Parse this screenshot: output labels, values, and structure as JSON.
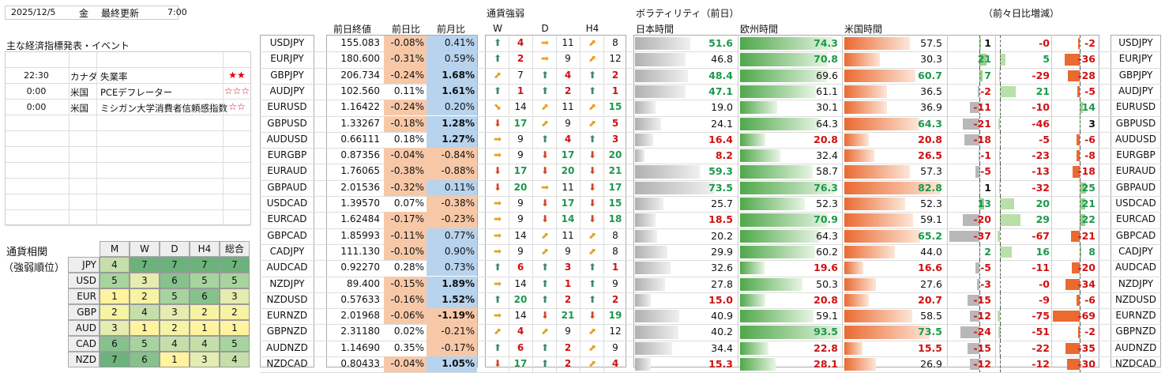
{
  "header": {
    "date": "2025/12/5",
    "weekday": "金",
    "updated_label": "最終更新",
    "updated_time": "7:00"
  },
  "events": {
    "title": "主な経済指標発表・イベント",
    "rows": [
      {
        "time": "",
        "country": "",
        "name": "",
        "stars": ""
      },
      {
        "time": "22:30",
        "country": "カナダ",
        "name": "失業率",
        "stars": "★★"
      },
      {
        "time": "0:00",
        "country": "米国",
        "name": "PCEデフレーター",
        "stars": "☆☆☆"
      },
      {
        "time": "0:00",
        "country": "米国",
        "name": "ミシガン大学消費者信頼感指数",
        "stars": "☆☆"
      },
      {
        "time": "",
        "country": "",
        "name": "",
        "stars": ""
      },
      {
        "time": "",
        "country": "",
        "name": "",
        "stars": ""
      },
      {
        "time": "",
        "country": "",
        "name": "",
        "stars": ""
      },
      {
        "time": "",
        "country": "",
        "name": "",
        "stars": ""
      },
      {
        "time": "",
        "country": "",
        "name": "",
        "stars": ""
      },
      {
        "time": "",
        "country": "",
        "name": "",
        "stars": ""
      },
      {
        "time": "",
        "country": "",
        "name": "",
        "stars": ""
      }
    ]
  },
  "corr": {
    "title1": "通貨相関",
    "title2": "（強弱順位）",
    "headers": [
      "M",
      "W",
      "D",
      "H4",
      "総合"
    ],
    "rows": [
      {
        "ccy": "JPY",
        "v": [
          "4",
          "7",
          "7",
          "7",
          "7"
        ]
      },
      {
        "ccy": "USD",
        "v": [
          "5",
          "3",
          "6",
          "5",
          "5"
        ]
      },
      {
        "ccy": "EUR",
        "v": [
          "1",
          "2",
          "5",
          "6",
          "3"
        ]
      },
      {
        "ccy": "GBP",
        "v": [
          "2",
          "4",
          "3",
          "2",
          "2"
        ]
      },
      {
        "ccy": "AUD",
        "v": [
          "3",
          "1",
          "2",
          "1",
          "1"
        ]
      },
      {
        "ccy": "CAD",
        "v": [
          "6",
          "5",
          "4",
          "4",
          "5"
        ]
      },
      {
        "ccy": "NZD",
        "v": [
          "7",
          "6",
          "1",
          "3",
          "4"
        ]
      }
    ]
  },
  "pairs_head": {
    "close": "前日終値",
    "dchg": "前日比",
    "mchg": "前月比"
  },
  "strength_head": {
    "title": "通貨強弱",
    "w": "W",
    "d": "D",
    "h4": "H4"
  },
  "vol_head": {
    "title": "ボラティリティ（前日）",
    "jp": "日本時間",
    "eu": "欧州時間",
    "us": "米国時間"
  },
  "diff_head": {
    "title": "（前々日比増減）"
  },
  "colors": {
    "up": "#1a9a4a",
    "down": "#d01010",
    "neg_bg": "#f7c8a8",
    "pos_bg": "#b8d3ee"
  },
  "rows": [
    {
      "pair": "USDJPY",
      "close": "155.083",
      "dchg": "-0.08%",
      "mchg": "0.41%",
      "mbold": false,
      "w": "up",
      "wn": "4",
      "wc": "r",
      "d": "right",
      "dn": "11",
      "dc": "n",
      "h": "ur",
      "hn": "8",
      "hc": "n",
      "jp": "51.6",
      "jpc": "g",
      "jpl": 0.55,
      "eu": "74.3",
      "euc": "g",
      "eul": 0.92,
      "us": "57.5",
      "usc": "n",
      "usl": 0.65,
      "d1": "1",
      "d1c": "n",
      "d1v": 0.1,
      "d2": "-0",
      "d2c": "r",
      "d2v": 0.0,
      "d3": "-2",
      "d3c": "r",
      "d3v": -0.05
    },
    {
      "pair": "EURJPY",
      "close": "180.600",
      "dchg": "-0.31%",
      "mchg": "0.59%",
      "mbold": false,
      "w": "up",
      "wn": "2",
      "wc": "r",
      "d": "right",
      "dn": "9",
      "dc": "n",
      "h": "ur",
      "hn": "12",
      "hc": "n",
      "jp": "46.8",
      "jpc": "n",
      "jpl": 0.5,
      "eu": "70.8",
      "euc": "g",
      "eul": 0.87,
      "us": "30.3",
      "usc": "n",
      "usl": 0.35,
      "d1": "21",
      "d1c": "g",
      "d1v": 0.5,
      "d2": "5",
      "d2c": "g",
      "d2v": 0.1,
      "d3": "-36",
      "d3c": "r",
      "d3v": -0.55
    },
    {
      "pair": "GBPJPY",
      "close": "206.734",
      "dchg": "-0.24%",
      "mchg": "1.68%",
      "mbold": true,
      "w": "ur",
      "wn": "7",
      "wc": "n",
      "d": "up",
      "dn": "4",
      "dc": "r",
      "h": "up",
      "hn": "2",
      "hc": "r",
      "jp": "48.4",
      "jpc": "g",
      "jpl": 0.52,
      "eu": "69.6",
      "euc": "n",
      "eul": 0.86,
      "us": "60.7",
      "usc": "g",
      "usl": 0.7,
      "d1": "7",
      "d1c": "g",
      "d1v": 0.2,
      "d2": "-29",
      "d2c": "r",
      "d2v": 0.4,
      "d3": "-28",
      "d3c": "r",
      "d3v": -0.42
    },
    {
      "pair": "AUDJPY",
      "close": "102.560",
      "dchg": "0.11%",
      "mchg": "1.61%",
      "mbold": true,
      "w": "up",
      "wn": "1",
      "wc": "r",
      "d": "up",
      "dn": "2",
      "dc": "r",
      "h": "up",
      "hn": "1",
      "hc": "r",
      "jp": "47.1",
      "jpc": "g",
      "jpl": 0.5,
      "eu": "61.1",
      "euc": "n",
      "eul": 0.75,
      "us": "36.5",
      "usc": "n",
      "usl": 0.42,
      "d1": "-2",
      "d1c": "r",
      "d1v": -0.05,
      "d2": "21",
      "d2c": "g",
      "d2v": 0.3,
      "d3": "-5",
      "d3c": "r",
      "d3v": -0.08
    },
    {
      "pair": "EURUSD",
      "close": "1.16422",
      "dchg": "-0.24%",
      "mchg": "0.20%",
      "mbold": false,
      "w": "dr",
      "wn": "14",
      "wc": "n",
      "d": "ur",
      "dn": "11",
      "dc": "n",
      "h": "ur",
      "hn": "15",
      "hc": "g",
      "jp": "19.0",
      "jpc": "n",
      "jpl": 0.2,
      "eu": "30.1",
      "euc": "n",
      "eul": 0.37,
      "us": "36.9",
      "usc": "n",
      "usl": 0.42,
      "d1": "-11",
      "d1c": "r",
      "d1v": -0.3,
      "d2": "-10",
      "d2c": "r",
      "d2v": 0.14,
      "d3": "14",
      "d3c": "g",
      "d3v": 0.2
    },
    {
      "pair": "GBPUSD",
      "close": "1.33267",
      "dchg": "-0.18%",
      "mchg": "1.28%",
      "mbold": true,
      "w": "down",
      "wn": "17",
      "wc": "g",
      "d": "ur",
      "dn": "9",
      "dc": "n",
      "h": "ur",
      "hn": "5",
      "hc": "r",
      "jp": "24.1",
      "jpc": "n",
      "jpl": 0.26,
      "eu": "64.3",
      "euc": "n",
      "eul": 0.79,
      "us": "64.3",
      "usc": "g",
      "usl": 0.74,
      "d1": "-21",
      "d1c": "r",
      "d1v": -0.55,
      "d2": "-46",
      "d2c": "r",
      "d2v": 0.62,
      "d3": "3",
      "d3c": "n",
      "d3v": 0.05
    },
    {
      "pair": "AUDUSD",
      "close": "0.66111",
      "dchg": "0.18%",
      "mchg": "1.27%",
      "mbold": true,
      "w": "right",
      "wn": "9",
      "wc": "n",
      "d": "up",
      "dn": "4",
      "dc": "r",
      "h": "up",
      "hn": "3",
      "hc": "r",
      "jp": "16.4",
      "jpc": "r",
      "jpl": 0.18,
      "eu": "20.8",
      "euc": "r",
      "eul": 0.25,
      "us": "20.8",
      "usc": "r",
      "usl": 0.24,
      "d1": "-18",
      "d1c": "r",
      "d1v": -0.48,
      "d2": "-5",
      "d2c": "r",
      "d2v": 0.07,
      "d3": "-6",
      "d3c": "r",
      "d3v": -0.1
    },
    {
      "pair": "EURGBP",
      "close": "0.87356",
      "dchg": "-0.04%",
      "mchg": "-0.84%",
      "mbold": false,
      "w": "right",
      "wn": "9",
      "wc": "n",
      "d": "down",
      "dn": "17",
      "dc": "g",
      "h": "down",
      "hn": "20",
      "hc": "g",
      "jp": "8.2",
      "jpc": "r",
      "jpl": 0.09,
      "eu": "32.4",
      "euc": "n",
      "eul": 0.4,
      "us": "26.5",
      "usc": "r",
      "usl": 0.3,
      "d1": "-1",
      "d1c": "r",
      "d1v": -0.03,
      "d2": "-23",
      "d2c": "r",
      "d2v": 0.3,
      "d3": "-8",
      "d3c": "r",
      "d3v": -0.12
    },
    {
      "pair": "EURAUD",
      "close": "1.76065",
      "dchg": "-0.38%",
      "mchg": "-0.88%",
      "mbold": false,
      "w": "down",
      "wn": "17",
      "wc": "g",
      "d": "down",
      "dn": "20",
      "dc": "g",
      "h": "down",
      "hn": "21",
      "hc": "g",
      "jp": "59.3",
      "jpc": "g",
      "jpl": 0.64,
      "eu": "58.7",
      "euc": "n",
      "eul": 0.72,
      "us": "57.3",
      "usc": "n",
      "usl": 0.65,
      "d1": "-5",
      "d1c": "r",
      "d1v": -0.14,
      "d2": "-13",
      "d2c": "r",
      "d2v": 0.17,
      "d3": "-18",
      "d3c": "r",
      "d3v": -0.27
    },
    {
      "pair": "GBPAUD",
      "close": "2.01536",
      "dchg": "-0.32%",
      "mchg": "0.11%",
      "mbold": false,
      "w": "down",
      "wn": "20",
      "wc": "g",
      "d": "right",
      "dn": "11",
      "dc": "n",
      "h": "down",
      "hn": "17",
      "hc": "g",
      "jp": "73.5",
      "jpc": "g",
      "jpl": 0.79,
      "eu": "76.3",
      "euc": "g",
      "eul": 0.94,
      "us": "82.8",
      "usc": "g",
      "usl": 0.95,
      "d1": "1",
      "d1c": "n",
      "d1v": 0.03,
      "d2": "-32",
      "d2c": "r",
      "d2v": 0.43,
      "d3": "25",
      "d3c": "g",
      "d3v": 0.38
    },
    {
      "pair": "USDCAD",
      "close": "1.39570",
      "dchg": "0.07%",
      "mchg": "-0.38%",
      "mbold": false,
      "w": "right",
      "wn": "9",
      "wc": "n",
      "d": "down",
      "dn": "17",
      "dc": "g",
      "h": "down",
      "hn": "15",
      "hc": "g",
      "jp": "25.7",
      "jpc": "n",
      "jpl": 0.28,
      "eu": "52.3",
      "euc": "n",
      "eul": 0.64,
      "us": "52.3",
      "usc": "n",
      "usl": 0.6,
      "d1": "13",
      "d1c": "g",
      "d1v": 0.35,
      "d2": "20",
      "d2c": "g",
      "d2v": 0.27,
      "d3": "21",
      "d3c": "g",
      "d3v": 0.32
    },
    {
      "pair": "EURCAD",
      "close": "1.62484",
      "dchg": "-0.17%",
      "mchg": "-0.23%",
      "mbold": false,
      "w": "right",
      "wn": "9",
      "wc": "n",
      "d": "down",
      "dn": "14",
      "dc": "g",
      "h": "down",
      "hn": "18",
      "hc": "g",
      "jp": "18.5",
      "jpc": "r",
      "jpl": 0.2,
      "eu": "70.9",
      "euc": "g",
      "eul": 0.87,
      "us": "59.1",
      "usc": "n",
      "usl": 0.68,
      "d1": "-20",
      "d1c": "r",
      "d1v": -0.53,
      "d2": "29",
      "d2c": "g",
      "d2v": 0.39,
      "d3": "22",
      "d3c": "g",
      "d3v": 0.33
    },
    {
      "pair": "GBPCAD",
      "close": "1.85993",
      "dchg": "-0.11%",
      "mchg": "0.77%",
      "mbold": false,
      "w": "right",
      "wn": "14",
      "wc": "n",
      "d": "ur",
      "dn": "11",
      "dc": "n",
      "h": "ur",
      "hn": "8",
      "hc": "n",
      "jp": "20.2",
      "jpc": "n",
      "jpl": 0.22,
      "eu": "64.3",
      "euc": "n",
      "eul": 0.79,
      "us": "65.2",
      "usc": "g",
      "usl": 0.75,
      "d1": "-37",
      "d1c": "r",
      "d1v": -0.98,
      "d2": "-67",
      "d2c": "r",
      "d2v": 0.9,
      "d3": "-21",
      "d3c": "r",
      "d3v": -0.32
    },
    {
      "pair": "CADJPY",
      "close": "111.130",
      "dchg": "-0.10%",
      "mchg": "0.90%",
      "mbold": false,
      "w": "right",
      "wn": "9",
      "wc": "n",
      "d": "ur",
      "dn": "9",
      "dc": "n",
      "h": "ur",
      "hn": "8",
      "hc": "n",
      "jp": "29.9",
      "jpc": "n",
      "jpl": 0.32,
      "eu": "60.2",
      "euc": "n",
      "eul": 0.74,
      "us": "44.0",
      "usc": "n",
      "usl": 0.5,
      "d1": "2",
      "d1c": "g",
      "d1v": 0.05,
      "d2": "16",
      "d2c": "g",
      "d2v": 0.22,
      "d3": "8",
      "d3c": "g",
      "d3v": 0.12
    },
    {
      "pair": "AUDCAD",
      "close": "0.92270",
      "dchg": "0.28%",
      "mchg": "0.73%",
      "mbold": false,
      "w": "up",
      "wn": "6",
      "wc": "r",
      "d": "up",
      "dn": "3",
      "dc": "r",
      "h": "up",
      "hn": "1",
      "hc": "r",
      "jp": "32.6",
      "jpc": "n",
      "jpl": 0.35,
      "eu": "19.6",
      "euc": "r",
      "eul": 0.24,
      "us": "16.6",
      "usc": "r",
      "usl": 0.19,
      "d1": "-5",
      "d1c": "r",
      "d1v": -0.14,
      "d2": "-11",
      "d2c": "r",
      "d2v": 0.15,
      "d3": "-20",
      "d3c": "r",
      "d3v": -0.3
    },
    {
      "pair": "NZDJPY",
      "close": "89.400",
      "dchg": "-0.15%",
      "mchg": "1.89%",
      "mbold": true,
      "w": "right",
      "wn": "14",
      "wc": "n",
      "d": "up",
      "dn": "1",
      "dc": "r",
      "h": "up",
      "hn": "9",
      "hc": "n",
      "jp": "27.8",
      "jpc": "n",
      "jpl": 0.3,
      "eu": "50.3",
      "euc": "n",
      "eul": 0.62,
      "us": "27.6",
      "usc": "n",
      "usl": 0.31,
      "d1": "-3",
      "d1c": "r",
      "d1v": -0.08,
      "d2": "-0",
      "d2c": "r",
      "d2v": 0.0,
      "d3": "-34",
      "d3c": "r",
      "d3v": -0.52
    },
    {
      "pair": "NZDUSD",
      "close": "0.57633",
      "dchg": "-0.16%",
      "mchg": "1.52%",
      "mbold": true,
      "w": "up",
      "wn": "20",
      "wc": "g",
      "d": "up",
      "dn": "2",
      "dc": "r",
      "h": "up",
      "hn": "2",
      "hc": "r",
      "jp": "15.0",
      "jpc": "r",
      "jpl": 0.16,
      "eu": "20.8",
      "euc": "r",
      "eul": 0.25,
      "us": "20.7",
      "usc": "r",
      "usl": 0.24,
      "d1": "-15",
      "d1c": "r",
      "d1v": -0.4,
      "d2": "-9",
      "d2c": "r",
      "d2v": 0.12,
      "d3": "-6",
      "d3c": "r",
      "d3v": -0.1
    },
    {
      "pair": "EURNZD",
      "close": "2.01968",
      "dchg": "-0.06%",
      "mchg": "-1.19%",
      "mbold": true,
      "w": "right",
      "wn": "14",
      "wc": "n",
      "d": "down",
      "dn": "21",
      "dc": "g",
      "h": "down",
      "hn": "19",
      "hc": "g",
      "jp": "40.9",
      "jpc": "n",
      "jpl": 0.44,
      "eu": "59.1",
      "euc": "n",
      "eul": 0.73,
      "us": "58.5",
      "usc": "n",
      "usl": 0.67,
      "d1": "-12",
      "d1c": "r",
      "d1v": -0.32,
      "d2": "-75",
      "d2c": "r",
      "d2v": 1.0,
      "d3": "-69",
      "d3c": "r",
      "d3v": -1.0
    },
    {
      "pair": "GBPNZD",
      "close": "2.31180",
      "dchg": "0.02%",
      "mchg": "-0.21%",
      "mbold": false,
      "w": "ur",
      "wn": "4",
      "wc": "r",
      "d": "ur",
      "dn": "9",
      "dc": "n",
      "h": "ur",
      "hn": "12",
      "hc": "n",
      "jp": "40.2",
      "jpc": "n",
      "jpl": 0.43,
      "eu": "93.5",
      "euc": "g",
      "eul": 1.0,
      "us": "73.5",
      "usc": "g",
      "usl": 0.84,
      "d1": "-24",
      "d1c": "r",
      "d1v": -0.63,
      "d2": "-51",
      "d2c": "r",
      "d2v": 0.68,
      "d3": "-2",
      "d3c": "r",
      "d3v": -0.05
    },
    {
      "pair": "AUDNZD",
      "close": "1.14690",
      "dchg": "0.35%",
      "mchg": "-0.17%",
      "mbold": false,
      "w": "up",
      "wn": "6",
      "wc": "r",
      "d": "up",
      "dn": "2",
      "dc": "r",
      "h": "ur",
      "hn": "9",
      "hc": "n",
      "jp": "34.4",
      "jpc": "n",
      "jpl": 0.37,
      "eu": "22.8",
      "euc": "r",
      "eul": 0.28,
      "us": "15.5",
      "usc": "r",
      "usl": 0.18,
      "d1": "-15",
      "d1c": "r",
      "d1v": -0.4,
      "d2": "-22",
      "d2c": "r",
      "d2v": 0.29,
      "d3": "-35",
      "d3c": "r",
      "d3v": -0.53
    },
    {
      "pair": "NZDCAD",
      "close": "0.80433",
      "dchg": "-0.04%",
      "mchg": "1.05%",
      "mbold": true,
      "w": "down",
      "wn": "17",
      "wc": "g",
      "d": "up",
      "dn": "2",
      "dc": "r",
      "h": "ur",
      "hn": "4",
      "hc": "r",
      "jp": "15.3",
      "jpc": "r",
      "jpl": 0.16,
      "eu": "28.1",
      "euc": "r",
      "eul": 0.35,
      "us": "26.9",
      "usc": "n",
      "usl": 0.31,
      "d1": "-12",
      "d1c": "r",
      "d1v": -0.32,
      "d2": "-12",
      "d2c": "r",
      "d2v": 0.16,
      "d3": "-30",
      "d3c": "r",
      "d3v": -0.45
    }
  ]
}
